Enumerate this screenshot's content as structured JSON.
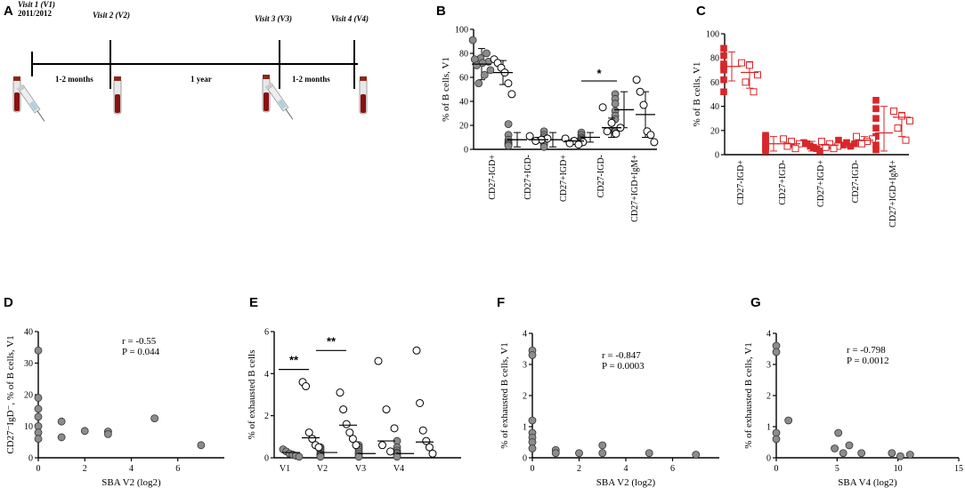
{
  "panels": {
    "A": {
      "letter": "A",
      "visits": [
        {
          "label": "Visit 1 (V1)",
          "sub": "2011/2012"
        },
        {
          "label": "Visit 2 (V2)"
        },
        {
          "label": "Visit 3 (V3)"
        },
        {
          "label": "Visit 4 (V4)"
        }
      ],
      "intervals": [
        "1-2 months",
        "1 year",
        "1-2 months"
      ]
    },
    "B": {
      "letter": "B"
    },
    "C": {
      "letter": "C"
    },
    "D": {
      "letter": "D"
    },
    "E": {
      "letter": "E"
    },
    "F": {
      "letter": "F"
    },
    "G": {
      "letter": "G"
    }
  },
  "chart_data": [
    {
      "id": "B",
      "type": "scatter",
      "ylabel": "% of B cells, V1",
      "ylim": [
        0,
        100
      ],
      "yticks": [
        0,
        20,
        40,
        60,
        80,
        100
      ],
      "categories": [
        "CD27-IGD+",
        "CD27+IGD-",
        "CD27+IGD+",
        "CD27-IGD-",
        "CD27+IGD+IgM+"
      ],
      "series": [
        {
          "name": "group1",
          "style": "filled-grey-circle",
          "values": [
            [
              91,
              80,
              76,
              75,
              73,
              72,
              70,
              66,
              62,
              55
            ],
            [
              21,
              12,
              8,
              6,
              5,
              4,
              3
            ],
            [
              15,
              12,
              10,
              8,
              6,
              4,
              2
            ],
            [
              14,
              12,
              10,
              9,
              8,
              7,
              6
            ],
            [
              46,
              42,
              38,
              32,
              28,
              25,
              15
            ]
          ],
          "means": [
            71,
            8,
            8,
            10,
            33
          ],
          "sd": [
            [
              58,
              84
            ],
            [
              2,
              14
            ],
            [
              2,
              14
            ],
            [
              6,
              14
            ],
            [
              18,
              48
            ]
          ]
        },
        {
          "name": "group2",
          "style": "open-circle",
          "values": [
            [
              75,
              72,
              68,
              64,
              55,
              46
            ],
            [
              11,
              9,
              8,
              7
            ],
            [
              9,
              7,
              6,
              5,
              4
            ],
            [
              35,
              22,
              18,
              15,
              13
            ],
            [
              58,
              48,
              37,
              15,
              12,
              6
            ]
          ],
          "means": [
            64,
            8,
            7,
            18,
            29
          ],
          "sd": [
            [
              54,
              74
            ],
            [
              6,
              10
            ],
            [
              4,
              9
            ],
            [
              10,
              26
            ],
            [
              10,
              48
            ]
          ]
        }
      ],
      "annotations": [
        {
          "text": "*",
          "between": "CD27-IGD-",
          "y": 57
        }
      ]
    },
    {
      "id": "C",
      "type": "scatter",
      "ylabel": "% of B cells, V1",
      "ylim": [
        0,
        100
      ],
      "yticks": [
        0,
        20,
        40,
        60,
        80,
        100
      ],
      "categories": [
        "CD27-IGD+",
        "CD27+IGD-",
        "CD27+IGD+",
        "CD27-IGD-",
        "CD27+IGD+IgM+"
      ],
      "series": [
        {
          "name": "group1",
          "style": "filled-red-square",
          "values": [
            [
              88,
              82,
              75,
              73,
              70,
              62,
              52
            ],
            [
              16,
              14,
              11,
              9,
              7,
              5,
              3
            ],
            [
              10,
              9,
              7,
              6,
              5,
              3
            ],
            [
              12,
              10,
              9,
              8,
              7
            ],
            [
              45,
              38,
              30,
              22,
              15,
              8,
              4
            ]
          ],
          "means": [
            73,
            9,
            7,
            9,
            18
          ],
          "sd": [
            [
              61,
              85
            ],
            [
              3,
              15
            ],
            [
              3,
              11
            ],
            [
              6,
              12
            ],
            [
              3,
              40
            ]
          ]
        },
        {
          "name": "group2",
          "style": "open-red-square",
          "values": [
            [
              76,
              74,
              66,
              60,
              52
            ],
            [
              13,
              11,
              9,
              7,
              5
            ],
            [
              11,
              9,
              7,
              6,
              5
            ],
            [
              15,
              13,
              11,
              9
            ],
            [
              36,
              32,
              28,
              22,
              12
            ]
          ],
          "means": [
            68,
            9,
            8,
            12,
            31
          ],
          "sd": [
            [
              55,
              77
            ],
            [
              6,
              13
            ],
            [
              5,
              11
            ],
            [
              9,
              15
            ],
            [
              15,
              35
            ]
          ]
        }
      ]
    },
    {
      "id": "D",
      "type": "scatter",
      "title": "",
      "xlabel": "SBA V2 (log2)",
      "ylabel": "CD27⁻IgD⁻, % of B cells, V1",
      "xlim": [
        0,
        8
      ],
      "xticks": [
        0,
        2,
        4,
        6
      ],
      "ylim": [
        0,
        40
      ],
      "yticks": [
        0,
        10,
        20,
        30,
        40
      ],
      "points": [
        [
          0,
          34
        ],
        [
          0,
          19
        ],
        [
          0,
          15.5
        ],
        [
          0,
          13
        ],
        [
          0,
          10
        ],
        [
          0,
          8
        ],
        [
          0,
          6
        ],
        [
          1,
          11.5
        ],
        [
          1,
          6.5
        ],
        [
          2,
          8.5
        ],
        [
          3,
          8.3
        ],
        [
          3,
          7.5
        ],
        [
          5,
          12.5
        ],
        [
          7,
          4
        ]
      ],
      "stats": {
        "r": "r = -0.55",
        "p": "P = 0.044"
      }
    },
    {
      "id": "E",
      "type": "scatter",
      "ylabel": "% of exhausted B cells",
      "ylim": [
        0,
        6
      ],
      "yticks": [
        0,
        2,
        4,
        6
      ],
      "categories": [
        "V1",
        "V2",
        "V3",
        "V4"
      ],
      "series": [
        {
          "name": "group1",
          "style": "filled-grey-circle",
          "values": [
            [
              0.4,
              0.3,
              0.2,
              0.15,
              0.1,
              0.05
            ],
            [
              0.5,
              0.4,
              0.3,
              0.2,
              0.15,
              0.1,
              0.05
            ],
            [
              0.6,
              0.5,
              0.4,
              0.3,
              0.2,
              0.1,
              0.05
            ],
            [
              0.8,
              0.5,
              0.35,
              0.25,
              0.2,
              0.1,
              0.05
            ]
          ],
          "medians": [
            0.25,
            0.25,
            0.2,
            0.2
          ]
        },
        {
          "name": "group2",
          "style": "open-circle",
          "values": [
            [
              3.6,
              3.4,
              1.2,
              0.9,
              0.6,
              0.5
            ],
            [
              3.1,
              2.3,
              1.6,
              1.2,
              0.9,
              0.6
            ],
            [
              4.6,
              2.3,
              1.4,
              0.6,
              0.3
            ],
            [
              5.1,
              2.6,
              1.3,
              0.8,
              0.5,
              0.2
            ]
          ],
          "medians": [
            0.95,
            1.55,
            0.8,
            0.75
          ]
        }
      ],
      "annotations": [
        {
          "text": "**",
          "category": "V1",
          "y": 4.2
        },
        {
          "text": "**",
          "category": "V2",
          "y": 5.1
        }
      ]
    },
    {
      "id": "F",
      "type": "scatter",
      "xlabel": "SBA V2 (log2)",
      "ylabel": "% of exhausted B cells, V1",
      "xlim": [
        0,
        8
      ],
      "xticks": [
        0,
        2,
        4,
        6
      ],
      "ylim": [
        0,
        4
      ],
      "yticks": [
        0,
        1,
        2,
        3,
        4
      ],
      "points": [
        [
          0,
          3.45
        ],
        [
          0,
          3.3
        ],
        [
          0,
          1.2
        ],
        [
          0,
          0.8
        ],
        [
          0,
          0.65
        ],
        [
          0,
          0.5
        ],
        [
          0,
          0.3
        ],
        [
          1,
          0.25
        ],
        [
          1,
          0.15
        ],
        [
          2,
          0.15
        ],
        [
          3,
          0.4
        ],
        [
          3,
          0.15
        ],
        [
          5,
          0.15
        ],
        [
          7,
          0.1
        ]
      ],
      "stats": {
        "r": "r = -0.847",
        "p": "P = 0.0003"
      }
    },
    {
      "id": "G",
      "type": "scatter",
      "xlabel": "SBA V4 (log2)",
      "ylabel": "% of exhausted B cells, V1",
      "xlim": [
        0,
        15
      ],
      "xticks": [
        0,
        5,
        10,
        15
      ],
      "ylim": [
        0,
        4
      ],
      "yticks": [
        0,
        1,
        2,
        3,
        4
      ],
      "points": [
        [
          0,
          3.6
        ],
        [
          0,
          3.4
        ],
        [
          0,
          0.8
        ],
        [
          0,
          0.6
        ],
        [
          1,
          1.2
        ],
        [
          4.8,
          0.3
        ],
        [
          5.1,
          0.8
        ],
        [
          5.5,
          0.15
        ],
        [
          6,
          0.4
        ],
        [
          7,
          0.15
        ],
        [
          9.5,
          0.15
        ],
        [
          10.2,
          0.05
        ],
        [
          11,
          0.1
        ]
      ],
      "stats": {
        "r": "r = -0.798",
        "p": "P = 0.0012"
      }
    }
  ]
}
